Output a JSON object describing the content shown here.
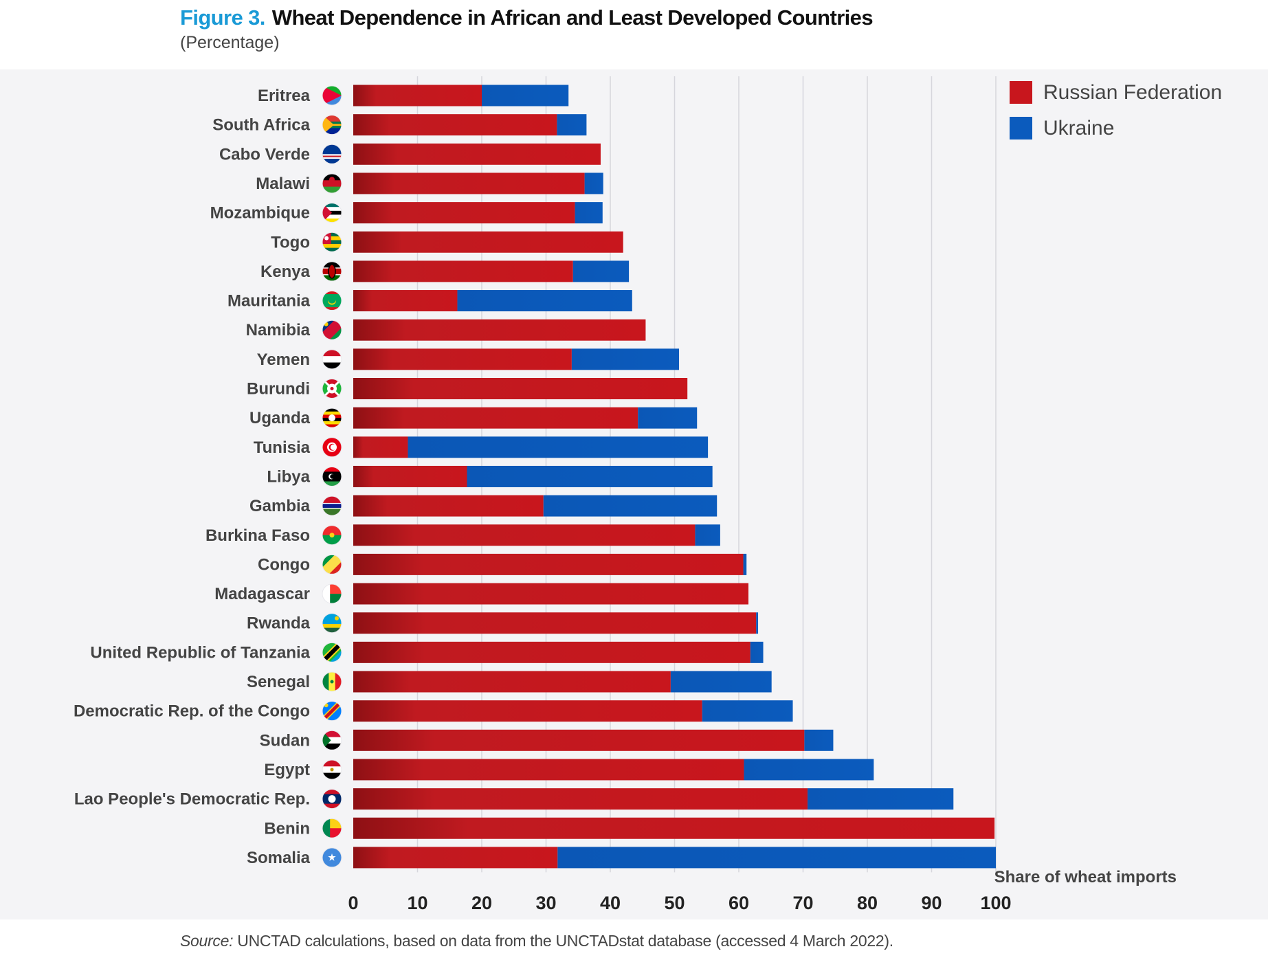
{
  "header": {
    "figure_number": "Figure 3.",
    "title": "Wheat Dependence in African and Least Developed Countries",
    "subtitle": "(Percentage)"
  },
  "source": {
    "label": "Source:",
    "text": " UNCTAD calculations, based on data from the UNCTADstat database (accessed 4 March 2022)."
  },
  "chart_data": {
    "type": "bar",
    "orientation": "horizontal",
    "stacked": true,
    "title": "Wheat Dependence in African and Least Developed Countries",
    "subtitle": "(Percentage)",
    "xlabel": "Share of wheat imports",
    "xlim": [
      0,
      100
    ],
    "xticks": [
      0,
      10,
      20,
      30,
      40,
      50,
      60,
      70,
      80,
      90,
      100
    ],
    "grid": true,
    "legend_position": "top-right",
    "categories": [
      "Eritrea",
      "South Africa",
      "Cabo Verde",
      "Malawi",
      "Mozambique",
      "Togo",
      "Kenya",
      "Mauritania",
      "Namibia",
      "Yemen",
      "Burundi",
      "Uganda",
      "Tunisia",
      "Libya",
      "Gambia",
      "Burkina Faso",
      "Congo",
      "Madagascar",
      "Rwanda",
      "United Republic of Tanzania",
      "Senegal",
      "Democratic Rep. of the Congo",
      "Sudan",
      "Egypt",
      "Lao People's Democratic Rep.",
      "Benin",
      "Somalia"
    ],
    "series": [
      {
        "name": "Russian Federation",
        "color": "#c8161d",
        "values": [
          20.0,
          31.7,
          38.5,
          36.0,
          34.5,
          42.0,
          34.2,
          16.2,
          45.5,
          34.0,
          52.0,
          44.3,
          8.5,
          17.7,
          29.6,
          53.2,
          60.7,
          61.5,
          62.7,
          61.8,
          49.4,
          54.3,
          70.2,
          60.8,
          70.7,
          99.8,
          31.8
        ]
      },
      {
        "name": "Ukraine",
        "color": "#0b5bbd",
        "values": [
          13.5,
          4.6,
          0.0,
          2.9,
          4.3,
          0.0,
          8.7,
          27.2,
          0.0,
          16.7,
          0.0,
          9.2,
          46.7,
          38.2,
          27.0,
          3.9,
          0.5,
          0.0,
          0.3,
          2.0,
          15.7,
          14.1,
          4.5,
          20.2,
          22.7,
          0.0,
          68.2
        ]
      }
    ],
    "flag_icons": [
      "eritrea-flag-icon",
      "south-africa-flag-icon",
      "cabo-verde-flag-icon",
      "malawi-flag-icon",
      "mozambique-flag-icon",
      "togo-flag-icon",
      "kenya-flag-icon",
      "mauritania-flag-icon",
      "namibia-flag-icon",
      "yemen-flag-icon",
      "burundi-flag-icon",
      "uganda-flag-icon",
      "tunisia-flag-icon",
      "libya-flag-icon",
      "gambia-flag-icon",
      "burkina-faso-flag-icon",
      "congo-flag-icon",
      "madagascar-flag-icon",
      "rwanda-flag-icon",
      "tanzania-flag-icon",
      "senegal-flag-icon",
      "dr-congo-flag-icon",
      "sudan-flag-icon",
      "egypt-flag-icon",
      "laos-flag-icon",
      "benin-flag-icon",
      "somalia-flag-icon"
    ]
  }
}
